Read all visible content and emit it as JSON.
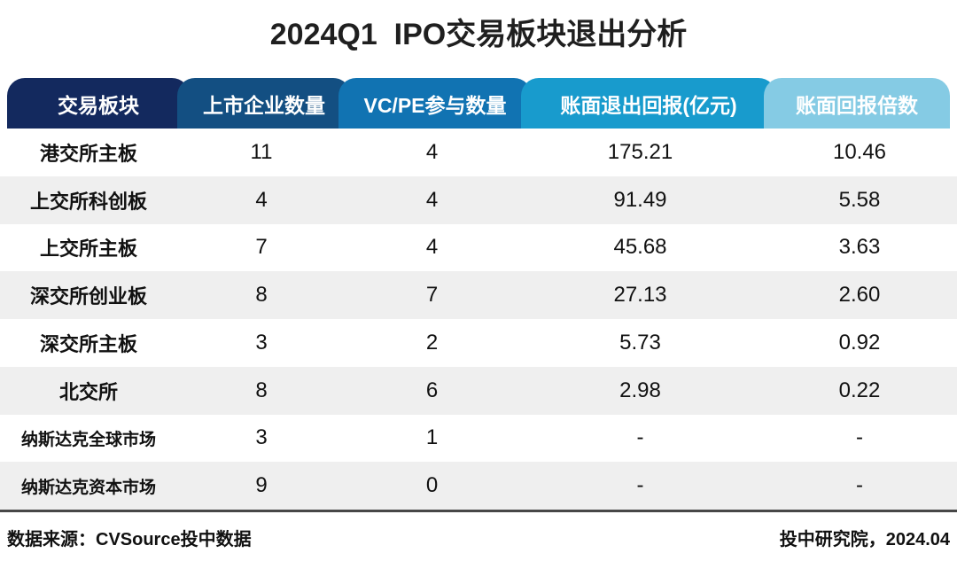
{
  "title": "2024Q1  IPO交易板块退出分析",
  "table": {
    "columns": [
      {
        "label": "交易板块",
        "color": "#13295e"
      },
      {
        "label": "上市企业数量",
        "color": "#134f82"
      },
      {
        "label": "VC/PE参与数量",
        "color": "#1173b2"
      },
      {
        "label": "账面退出回报(亿元)",
        "color": "#189bcd"
      },
      {
        "label": "账面回报倍数",
        "color": "#85cbe4"
      }
    ],
    "rows": [
      [
        "港交所主板",
        "11",
        "4",
        "175.21",
        "10.46"
      ],
      [
        "上交所科创板",
        "4",
        "4",
        "91.49",
        "5.58"
      ],
      [
        "上交所主板",
        "7",
        "4",
        "45.68",
        "3.63"
      ],
      [
        "深交所创业板",
        "8",
        "7",
        "27.13",
        "2.60"
      ],
      [
        "深交所主板",
        "3",
        "2",
        "5.73",
        "0.92"
      ],
      [
        "北交所",
        "8",
        "6",
        "2.98",
        "0.22"
      ],
      [
        "纳斯达克全球市场",
        "3",
        "1",
        "-",
        "-"
      ],
      [
        "纳斯达克资本市场",
        "9",
        "0",
        "-",
        "-"
      ]
    ]
  },
  "footer": {
    "source": "数据来源：CVSource投中数据",
    "credit": "投中研究院，2024.04"
  },
  "chart_data": {
    "type": "table",
    "title": "2024Q1 IPO交易板块退出分析",
    "columns": [
      "交易板块",
      "上市企业数量",
      "VC/PE参与数量",
      "账面退出回报(亿元)",
      "账面回报倍数"
    ],
    "rows": [
      {
        "board": "港交所主板",
        "listed_companies": 11,
        "vcpe_participation": 4,
        "book_return_100m": 175.21,
        "book_return_multiple": 10.46
      },
      {
        "board": "上交所科创板",
        "listed_companies": 4,
        "vcpe_participation": 4,
        "book_return_100m": 91.49,
        "book_return_multiple": 5.58
      },
      {
        "board": "上交所主板",
        "listed_companies": 7,
        "vcpe_participation": 4,
        "book_return_100m": 45.68,
        "book_return_multiple": 3.63
      },
      {
        "board": "深交所创业板",
        "listed_companies": 8,
        "vcpe_participation": 7,
        "book_return_100m": 27.13,
        "book_return_multiple": 2.6
      },
      {
        "board": "深交所主板",
        "listed_companies": 3,
        "vcpe_participation": 2,
        "book_return_100m": 5.73,
        "book_return_multiple": 0.92
      },
      {
        "board": "北交所",
        "listed_companies": 8,
        "vcpe_participation": 6,
        "book_return_100m": 2.98,
        "book_return_multiple": 0.22
      },
      {
        "board": "纳斯达克全球市场",
        "listed_companies": 3,
        "vcpe_participation": 1,
        "book_return_100m": null,
        "book_return_multiple": null
      },
      {
        "board": "纳斯达克资本市场",
        "listed_companies": 9,
        "vcpe_participation": 0,
        "book_return_100m": null,
        "book_return_multiple": null
      }
    ],
    "header_colors": [
      "#13295e",
      "#134f82",
      "#1173b2",
      "#189bcd",
      "#85cbe4"
    ],
    "source": "数据来源：CVSource投中数据",
    "credit": "投中研究院，2024.04"
  }
}
